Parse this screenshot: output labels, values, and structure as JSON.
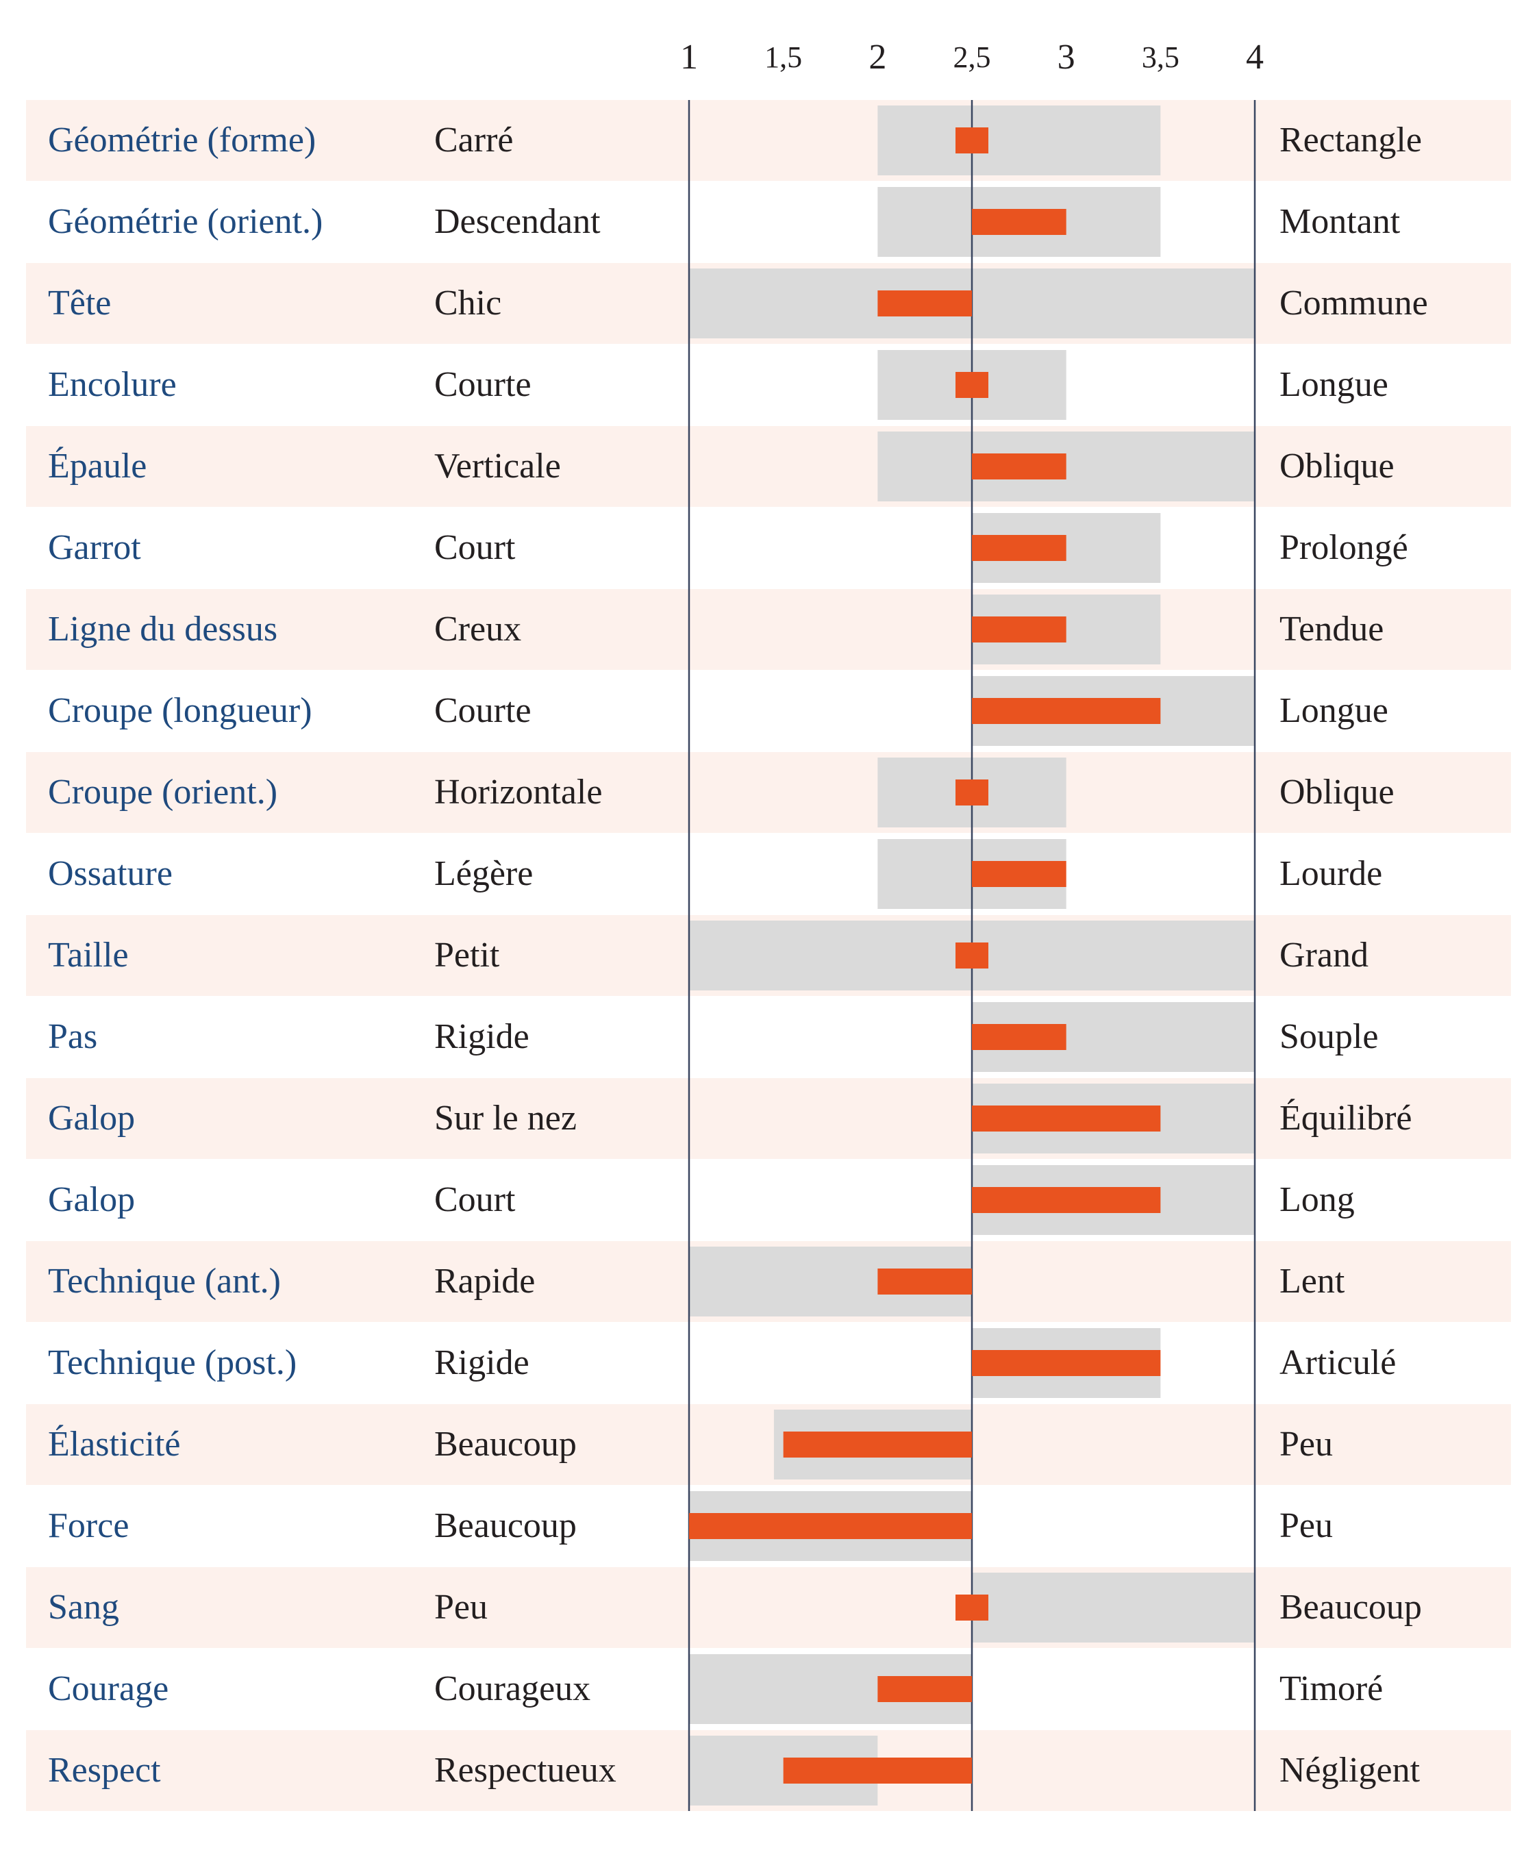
{
  "chart_data": {
    "type": "bar",
    "baseline": 2.5,
    "x_ticks": [
      "1",
      "1,5",
      "2",
      "2,5",
      "3",
      "3,5",
      "4"
    ],
    "tick_values": [
      1,
      1.5,
      2,
      2.5,
      3,
      3.5,
      4
    ],
    "xlim": [
      1,
      4
    ],
    "grid": false,
    "rows": [
      {
        "label": "Géométrie (forme)",
        "low": "Carré",
        "high": "Rectangle",
        "value": 2.5,
        "range": [
          2,
          3.5
        ]
      },
      {
        "label": "Géométrie (orient.)",
        "low": "Descendant",
        "high": "Montant",
        "value": 3,
        "range": [
          2,
          3.5
        ]
      },
      {
        "label": "Tête",
        "low": "Chic",
        "high": "Commune",
        "value": 2,
        "range": [
          1,
          4
        ]
      },
      {
        "label": "Encolure",
        "low": "Courte",
        "high": "Longue",
        "value": 2.5,
        "range": [
          2,
          3
        ]
      },
      {
        "label": "Épaule",
        "low": "Verticale",
        "high": "Oblique",
        "value": 3,
        "range": [
          2,
          4
        ]
      },
      {
        "label": "Garrot",
        "low": "Court",
        "high": "Prolongé",
        "value": 3,
        "range": [
          2.5,
          3.5
        ]
      },
      {
        "label": "Ligne du dessus",
        "low": "Creux",
        "high": "Tendue",
        "value": 3,
        "range": [
          2.5,
          3.5
        ]
      },
      {
        "label": "Croupe (longueur)",
        "low": "Courte",
        "high": "Longue",
        "value": 3.5,
        "range": [
          2.5,
          4
        ]
      },
      {
        "label": "Croupe (orient.)",
        "low": "Horizontale",
        "high": "Oblique",
        "value": 2.5,
        "range": [
          2,
          3
        ]
      },
      {
        "label": "Ossature",
        "low": "Légère",
        "high": "Lourde",
        "value": 3,
        "range": [
          2,
          3
        ]
      },
      {
        "label": "Taille",
        "low": "Petit",
        "high": "Grand",
        "value": 2.5,
        "range": [
          1,
          4
        ]
      },
      {
        "label": "Pas",
        "low": "Rigide",
        "high": "Souple",
        "value": 3,
        "range": [
          2.5,
          4
        ]
      },
      {
        "label": "Galop",
        "low": "Sur le nez",
        "high": "Équilibré",
        "value": 3.5,
        "range": [
          2.5,
          4
        ]
      },
      {
        "label": "Galop",
        "low": "Court",
        "high": "Long",
        "value": 3.5,
        "range": [
          2.5,
          4
        ]
      },
      {
        "label": "Technique (ant.)",
        "low": "Rapide",
        "high": "Lent",
        "value": 2,
        "range": [
          1,
          2.5
        ]
      },
      {
        "label": "Technique (post.)",
        "low": "Rigide",
        "high": "Articulé",
        "value": 3.5,
        "range": [
          2.5,
          3.5
        ]
      },
      {
        "label": "Élasticité",
        "low": "Beaucoup",
        "high": "Peu",
        "value": 1.5,
        "range": [
          1.45,
          2.5
        ]
      },
      {
        "label": "Force",
        "low": "Beaucoup",
        "high": "Peu",
        "value": 1,
        "range": [
          1,
          2.5
        ]
      },
      {
        "label": "Sang",
        "low": "Peu",
        "high": "Beaucoup",
        "value": 2.5,
        "range": [
          2.5,
          4
        ]
      },
      {
        "label": "Courage",
        "low": "Courageux",
        "high": "Timoré",
        "value": 2,
        "range": [
          1,
          2.5
        ]
      },
      {
        "label": "Respect",
        "low": "Respectueux",
        "high": "Négligent",
        "value": 1.5,
        "range": [
          1,
          2
        ]
      }
    ]
  },
  "colors": {
    "label": "#1f4a7e",
    "text": "#231f20",
    "band": "#fdf1ec",
    "range": "#dadada",
    "bar": "#e9531f",
    "axis": "#3a4660"
  }
}
